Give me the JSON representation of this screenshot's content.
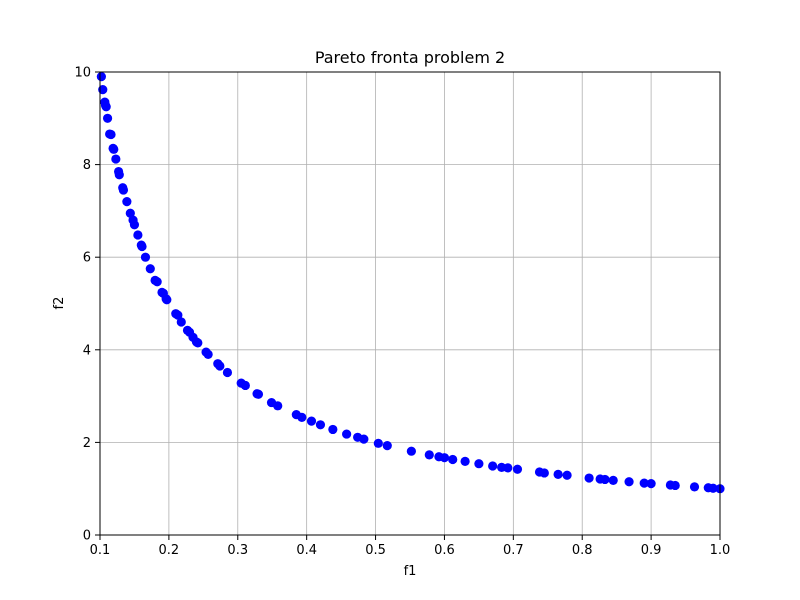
{
  "chart_data": {
    "type": "scatter",
    "title": "Pareto fronta problem 2",
    "xlabel": "f1",
    "ylabel": "f2",
    "xlim": [
      0.1,
      1.0
    ],
    "ylim": [
      0,
      10
    ],
    "x_ticks": [
      "0.1",
      "0.2",
      "0.3",
      "0.4",
      "0.5",
      "0.6",
      "0.7",
      "0.8",
      "0.9",
      "1.0"
    ],
    "y_ticks": [
      "0",
      "2",
      "4",
      "6",
      "8",
      "10"
    ],
    "x_tick_values": [
      0.1,
      0.2,
      0.3,
      0.4,
      0.5,
      0.6,
      0.7,
      0.8,
      0.9,
      1.0
    ],
    "y_tick_values": [
      0,
      2,
      4,
      6,
      8,
      10
    ],
    "grid": true,
    "legend": "none",
    "marker_color": "#0000ff",
    "points": [
      [
        0.102,
        9.9
      ],
      [
        0.104,
        9.62
      ],
      [
        0.107,
        9.35
      ],
      [
        0.108,
        9.28
      ],
      [
        0.109,
        9.25
      ],
      [
        0.111,
        9.0
      ],
      [
        0.114,
        8.66
      ],
      [
        0.116,
        8.65
      ],
      [
        0.119,
        8.35
      ],
      [
        0.12,
        8.33
      ],
      [
        0.123,
        8.12
      ],
      [
        0.127,
        7.85
      ],
      [
        0.128,
        7.78
      ],
      [
        0.133,
        7.5
      ],
      [
        0.134,
        7.45
      ],
      [
        0.139,
        7.2
      ],
      [
        0.144,
        6.95
      ],
      [
        0.148,
        6.8
      ],
      [
        0.15,
        6.7
      ],
      [
        0.155,
        6.48
      ],
      [
        0.16,
        6.26
      ],
      [
        0.161,
        6.23
      ],
      [
        0.166,
        6.0
      ],
      [
        0.173,
        5.75
      ],
      [
        0.18,
        5.5
      ],
      [
        0.183,
        5.47
      ],
      [
        0.19,
        5.24
      ],
      [
        0.192,
        5.22
      ],
      [
        0.196,
        5.1
      ],
      [
        0.197,
        5.08
      ],
      [
        0.21,
        4.78
      ],
      [
        0.213,
        4.75
      ],
      [
        0.218,
        4.6
      ],
      [
        0.227,
        4.42
      ],
      [
        0.23,
        4.38
      ],
      [
        0.235,
        4.27
      ],
      [
        0.24,
        4.17
      ],
      [
        0.242,
        4.15
      ],
      [
        0.254,
        3.95
      ],
      [
        0.257,
        3.9
      ],
      [
        0.271,
        3.7
      ],
      [
        0.274,
        3.65
      ],
      [
        0.285,
        3.51
      ],
      [
        0.305,
        3.28
      ],
      [
        0.311,
        3.23
      ],
      [
        0.328,
        3.05
      ],
      [
        0.33,
        3.04
      ],
      [
        0.349,
        2.86
      ],
      [
        0.358,
        2.79
      ],
      [
        0.385,
        2.6
      ],
      [
        0.393,
        2.54
      ],
      [
        0.407,
        2.46
      ],
      [
        0.42,
        2.38
      ],
      [
        0.438,
        2.28
      ],
      [
        0.458,
        2.18
      ],
      [
        0.474,
        2.11
      ],
      [
        0.483,
        2.07
      ],
      [
        0.504,
        1.98
      ],
      [
        0.517,
        1.93
      ],
      [
        0.552,
        1.81
      ],
      [
        0.578,
        1.73
      ],
      [
        0.592,
        1.69
      ],
      [
        0.6,
        1.67
      ],
      [
        0.612,
        1.63
      ],
      [
        0.63,
        1.59
      ],
      [
        0.65,
        1.54
      ],
      [
        0.67,
        1.49
      ],
      [
        0.683,
        1.46
      ],
      [
        0.692,
        1.45
      ],
      [
        0.706,
        1.42
      ],
      [
        0.738,
        1.36
      ],
      [
        0.745,
        1.34
      ],
      [
        0.765,
        1.31
      ],
      [
        0.778,
        1.29
      ],
      [
        0.81,
        1.23
      ],
      [
        0.826,
        1.21
      ],
      [
        0.833,
        1.2
      ],
      [
        0.845,
        1.18
      ],
      [
        0.868,
        1.15
      ],
      [
        0.89,
        1.12
      ],
      [
        0.9,
        1.11
      ],
      [
        0.928,
        1.08
      ],
      [
        0.935,
        1.07
      ],
      [
        0.963,
        1.04
      ],
      [
        0.983,
        1.02
      ],
      [
        0.99,
        1.01
      ],
      [
        1.0,
        1.0
      ]
    ]
  }
}
